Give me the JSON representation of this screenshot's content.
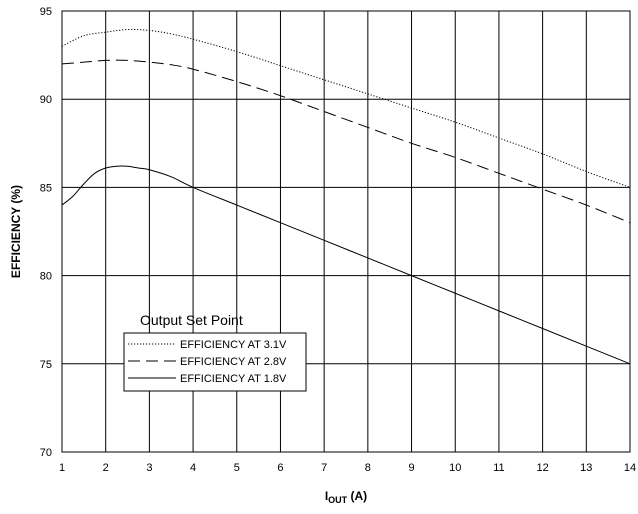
{
  "chart_data": {
    "type": "line",
    "xlabel": "I",
    "xlabel_sub": "OUT",
    "xlabel_unit": " (A)",
    "ylabel": "EFFICIENCY (%)",
    "xlim": [
      1,
      14
    ],
    "ylim": [
      70,
      95
    ],
    "xticks": [
      1,
      2,
      3,
      4,
      5,
      6,
      7,
      8,
      9,
      10,
      11,
      12,
      13,
      14
    ],
    "yticks": [
      70,
      75,
      80,
      85,
      90,
      95
    ],
    "grid": true,
    "legend": {
      "title": "Output Set Point",
      "placement": "lower-left"
    },
    "series": [
      {
        "name": "EFFICIENCY AT 3.1V",
        "style": "dotted",
        "x": [
          1,
          1.5,
          2,
          2.5,
          3,
          3.5,
          4,
          5,
          6,
          7,
          8,
          9,
          10,
          11,
          12,
          13,
          14
        ],
        "y": [
          93.0,
          93.6,
          93.8,
          93.95,
          93.9,
          93.7,
          93.4,
          92.7,
          91.9,
          91.1,
          90.3,
          89.5,
          88.7,
          87.8,
          86.9,
          85.9,
          85.0
        ]
      },
      {
        "name": "EFFICIENCY AT 2.8V",
        "style": "dashed",
        "x": [
          1,
          1.5,
          2,
          2.5,
          3,
          3.5,
          4,
          5,
          6,
          7,
          8,
          9,
          10,
          11,
          12,
          13,
          14
        ],
        "y": [
          92.0,
          92.1,
          92.2,
          92.2,
          92.1,
          91.95,
          91.7,
          91.0,
          90.2,
          89.3,
          88.4,
          87.5,
          86.7,
          85.8,
          84.9,
          84.0,
          83.0
        ]
      },
      {
        "name": "EFFICIENCY AT 1.8V",
        "style": "solid",
        "x": [
          1,
          1.25,
          1.5,
          1.75,
          2,
          2.25,
          2.5,
          2.75,
          3,
          3.5,
          4,
          5,
          6,
          7,
          8,
          9,
          10,
          11,
          12,
          13,
          14
        ],
        "y": [
          84.0,
          84.5,
          85.2,
          85.8,
          86.1,
          86.2,
          86.2,
          86.1,
          86.0,
          85.6,
          85.0,
          84.0,
          83.0,
          82.0,
          81.0,
          80.0,
          79.0,
          78.0,
          77.0,
          76.0,
          75.0
        ]
      }
    ]
  }
}
